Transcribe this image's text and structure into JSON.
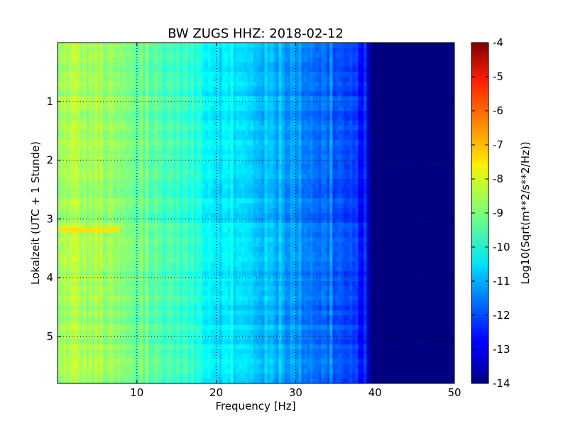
{
  "chart_data": {
    "type": "heatmap",
    "title": "BW ZUGS HHZ: 2018-02-12",
    "xlabel": "Frequency [Hz]",
    "ylabel": "Lokalzeit (UTC + 1 Stunde)",
    "xlim": [
      0,
      50
    ],
    "ylim": [
      0,
      5.8
    ],
    "y_inverted": true,
    "x_ticks": [
      "10",
      "20",
      "30",
      "40",
      "50"
    ],
    "x_tick_values": [
      10,
      20,
      30,
      40,
      50
    ],
    "y_ticks": [
      "1",
      "2",
      "3",
      "4",
      "5"
    ],
    "y_tick_values": [
      1,
      2,
      3,
      4,
      5
    ],
    "grid": true,
    "colormap": "jet",
    "colorbar": {
      "label": "Log10(Sqrt(m**2/s**2/Hz))",
      "min": -14,
      "max": -4,
      "ticks": [
        "-4",
        "-5",
        "-6",
        "-7",
        "-8",
        "-9",
        "-10",
        "-11",
        "-12",
        "-13",
        "-14"
      ],
      "tick_values": [
        -4,
        -5,
        -6,
        -7,
        -8,
        -9,
        -10,
        -11,
        -12,
        -13,
        -14
      ]
    },
    "spectrum_profile": {
      "frequency_hz": [
        0,
        1,
        5,
        8,
        10,
        15,
        18,
        20,
        25,
        30,
        35,
        38,
        40,
        45,
        50
      ],
      "log_amplitude": [
        -9.0,
        -8.5,
        -8.7,
        -9.0,
        -9.3,
        -9.6,
        -10.0,
        -10.4,
        -10.8,
        -11.3,
        -11.9,
        -12.4,
        -14.0,
        -14.0,
        -14.0
      ]
    },
    "events": [
      {
        "time": 3.2,
        "frequency_range": [
          0.5,
          8
        ],
        "log_amplitude": -7.5
      }
    ]
  }
}
